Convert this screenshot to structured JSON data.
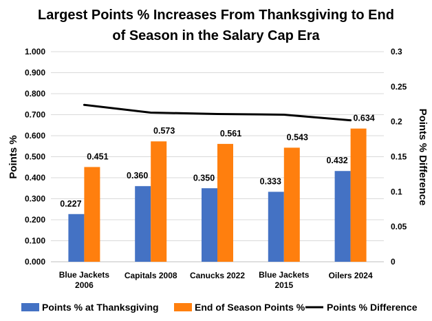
{
  "chart_data": {
    "type": "bar",
    "title_lines": [
      "Largest Points % Increases From Thanksgiving to End",
      "of Season in the Salary Cap Era"
    ],
    "categories": [
      [
        "Blue Jackets",
        "2006"
      ],
      [
        "Capitals 2008"
      ],
      [
        "Canucks 2022"
      ],
      [
        "Blue Jackets",
        "2015"
      ],
      [
        "Oilers 2024"
      ]
    ],
    "series": [
      {
        "name": "Points % at Thanksgiving",
        "type": "bar",
        "axis": "left",
        "color": "#4472C4",
        "values": [
          0.227,
          0.36,
          0.35,
          0.333,
          0.432
        ],
        "labels": [
          "0.227",
          "0.360",
          "0.350",
          "0.333",
          "0.432"
        ]
      },
      {
        "name": "End of Season Points %",
        "type": "bar",
        "axis": "left",
        "color": "#FF7F0E",
        "values": [
          0.451,
          0.573,
          0.561,
          0.543,
          0.634
        ],
        "labels": [
          "0.451",
          "0.573",
          "0.561",
          "0.543",
          "0.634"
        ]
      },
      {
        "name": "Points % Difference",
        "type": "line",
        "axis": "right",
        "color": "#000000",
        "values": [
          0.224,
          0.213,
          0.211,
          0.21,
          0.202
        ]
      }
    ],
    "ylabel": "Points %",
    "ylim": [
      0,
      1.0
    ],
    "yticks": [
      0,
      0.1,
      0.2,
      0.3,
      0.4,
      0.5,
      0.6,
      0.7,
      0.8,
      0.9,
      1.0
    ],
    "ytick_labels": [
      "0.000",
      "0.100",
      "0.200",
      "0.300",
      "0.400",
      "0.500",
      "0.600",
      "0.700",
      "0.800",
      "0.900",
      "1.000"
    ],
    "y2label": "Points % Difference",
    "y2lim": [
      0,
      0.3
    ],
    "y2ticks": [
      0,
      0.05,
      0.1,
      0.15,
      0.2,
      0.25,
      0.3
    ],
    "y2tick_labels": [
      "0",
      "0.05",
      "0.1",
      "0.15",
      "0.2",
      "0.25",
      "0.3"
    ],
    "grid": "horizontal",
    "legend_position": "bottom"
  }
}
